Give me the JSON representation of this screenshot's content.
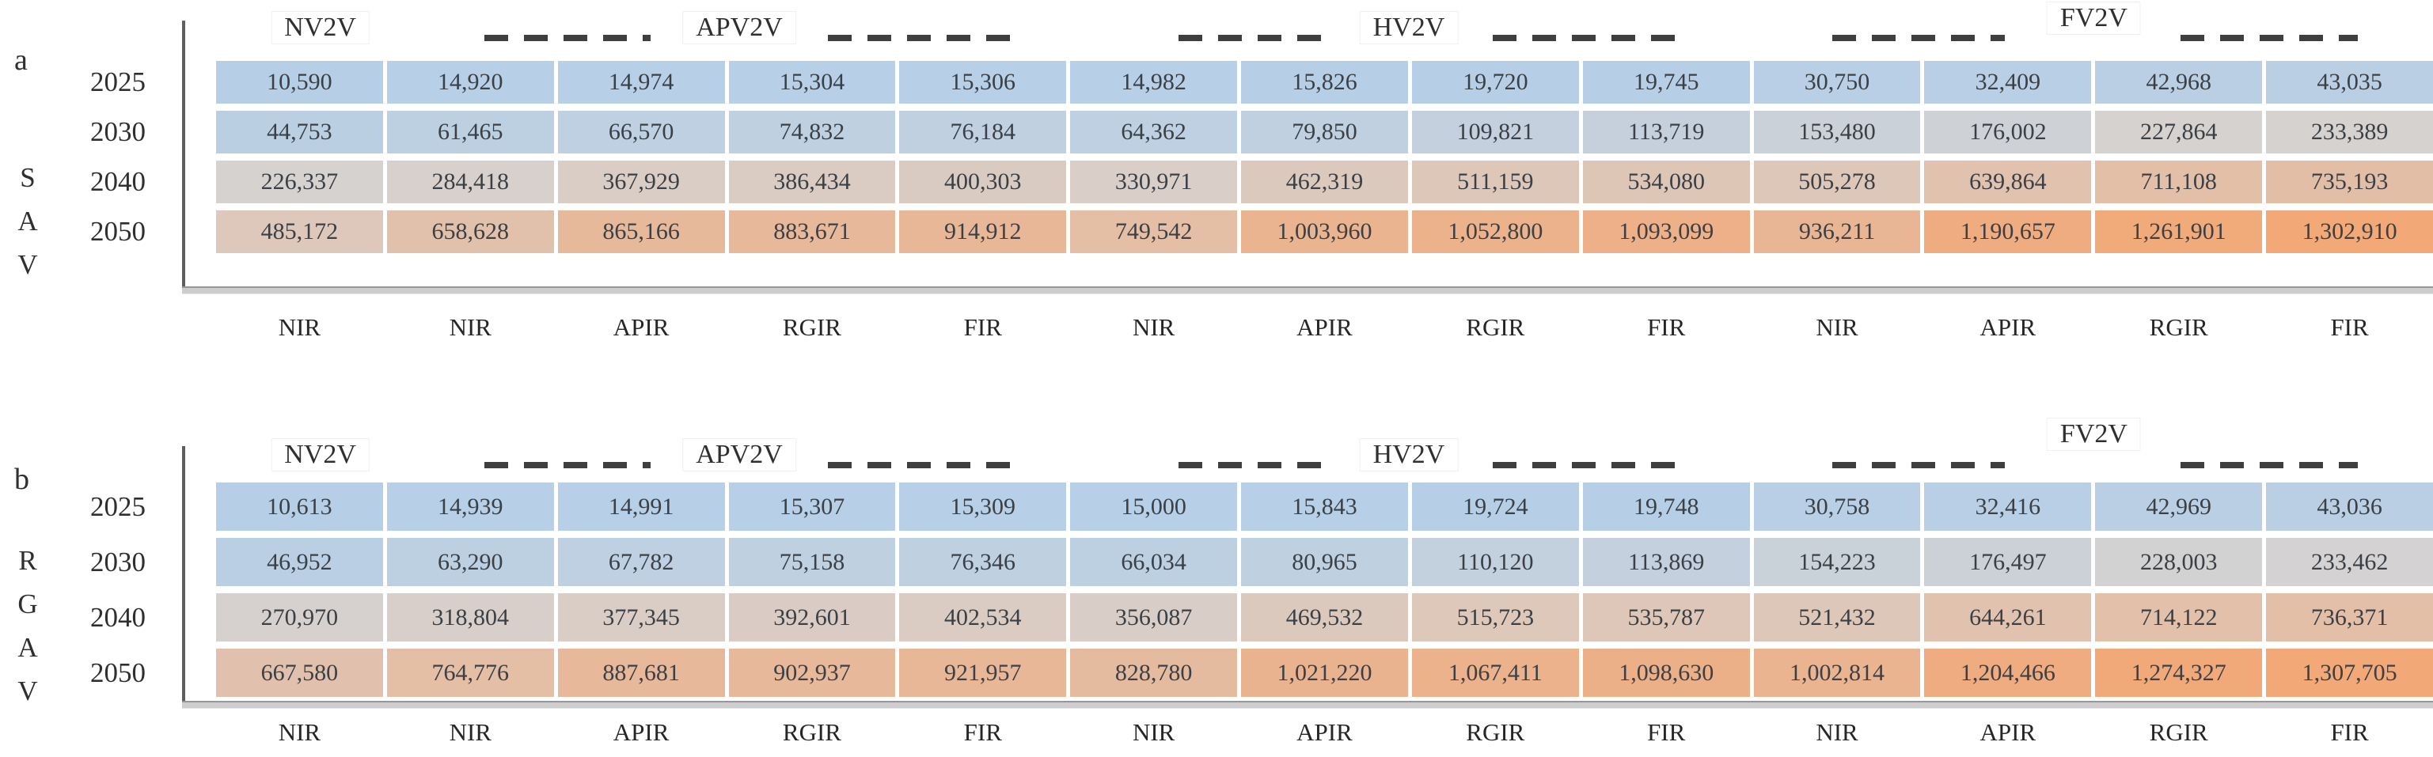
{
  "figure": {
    "colors": {
      "vertical_axis_line": "#5f5f5f",
      "baseline_bar": "#cdcdcd",
      "legend_dash": "#3f3f3f",
      "cell_text": "#3b4046",
      "label_text": "#262626"
    }
  },
  "chart_data": [
    {
      "type": "heatmap",
      "panel_label": "a",
      "y_axis": "SAV",
      "y_axis_letters": [
        "S",
        "A",
        "V"
      ],
      "group_headers": [
        "NV2V",
        "APV2V",
        "HV2V",
        "FV2V"
      ],
      "years": [
        "2025",
        "2030",
        "2040",
        "2050"
      ],
      "col_labels": [
        "NIR",
        "NIR",
        "APIR",
        "RGIR",
        "FIR",
        "NIR",
        "APIR",
        "RGIR",
        "FIR",
        "NIR",
        "APIR",
        "RGIR",
        "FIR"
      ],
      "rows": [
        [
          10590,
          14920,
          14974,
          15304,
          15306,
          14982,
          15826,
          19720,
          19745,
          30750,
          32409,
          42968,
          43035
        ],
        [
          44753,
          61465,
          66570,
          74832,
          76184,
          64362,
          79850,
          109821,
          113719,
          153480,
          176002,
          227864,
          233389
        ],
        [
          226337,
          284418,
          367929,
          386434,
          400303,
          330971,
          462319,
          511159,
          534080,
          505278,
          639864,
          711108,
          735193
        ],
        [
          485172,
          658628,
          865166,
          883671,
          914912,
          749542,
          1003960,
          1052800,
          1093099,
          936211,
          1190657,
          1261901,
          1302910
        ]
      ],
      "color_scale": {
        "min_color": "#b6cfe7",
        "mid_color": "#d6d2d0",
        "max_color": "#f2a877",
        "midpoint": "median"
      }
    },
    {
      "type": "heatmap",
      "panel_label": "b",
      "y_axis": "RGAV",
      "y_axis_letters": [
        "R",
        "G",
        "A",
        "V"
      ],
      "group_headers": [
        "NV2V",
        "APV2V",
        "HV2V",
        "FV2V"
      ],
      "years": [
        "2025",
        "2030",
        "2040",
        "2050"
      ],
      "col_labels": [
        "NIR",
        "NIR",
        "APIR",
        "RGIR",
        "FIR",
        "NIR",
        "APIR",
        "RGIR",
        "FIR",
        "NIR",
        "APIR",
        "RGIR",
        "FIR"
      ],
      "rows": [
        [
          10613,
          14939,
          14991,
          15307,
          15309,
          15000,
          15843,
          19724,
          19748,
          30758,
          32416,
          42969,
          43036
        ],
        [
          46952,
          63290,
          67782,
          75158,
          76346,
          66034,
          80965,
          110120,
          113869,
          154223,
          176497,
          228003,
          233462
        ],
        [
          270970,
          318804,
          377345,
          392601,
          402534,
          356087,
          469532,
          515723,
          535787,
          521432,
          644261,
          714122,
          736371
        ],
        [
          667580,
          764776,
          887681,
          902937,
          921957,
          828780,
          1021220,
          1067411,
          1098630,
          1002814,
          1204466,
          1274327,
          1307705
        ]
      ],
      "color_scale": {
        "min_color": "#b6cfe7",
        "mid_color": "#d6d2d0",
        "max_color": "#f2a877",
        "midpoint": "median"
      }
    }
  ]
}
